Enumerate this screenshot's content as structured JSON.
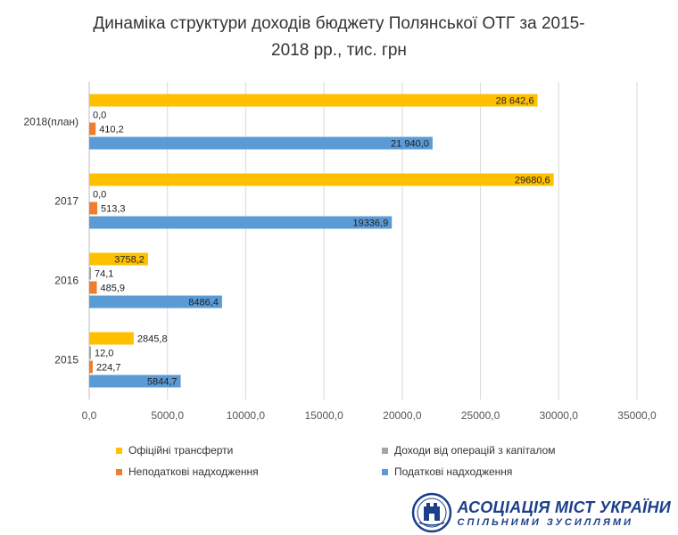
{
  "chart_data": {
    "type": "bar",
    "orientation": "horizontal",
    "title": "Динаміка структури доходів бюджету Полянської ОТГ за 2015-2018 рр., тис. грн",
    "title_lines": [
      "Динаміка структури доходів бюджету Полянської ОТГ за 2015-",
      "2018 рр., тис. грн"
    ],
    "categories": [
      "2018(план)",
      "2017",
      "2016",
      "2015"
    ],
    "xlim": [
      0,
      35000
    ],
    "xticks": [
      0,
      5000,
      10000,
      15000,
      20000,
      25000,
      30000,
      35000
    ],
    "xtick_labels": [
      "0,0",
      "5000,0",
      "10000,0",
      "15000,0",
      "20000,0",
      "25000,0",
      "30000,0",
      "35000,0"
    ],
    "grid": true,
    "legend_position": "bottom",
    "series": [
      {
        "name": "Офіційні трансферти",
        "color": "#FFC000",
        "values": [
          28642.6,
          29680.6,
          3758.2,
          2845.8
        ],
        "labels": [
          "28 642,6",
          "29680,6",
          "3758,2",
          "2845,8"
        ]
      },
      {
        "name": "Доходи від операцій з капіталом",
        "color": "#A5A5A5",
        "values": [
          0.0,
          0.0,
          74.1,
          12.0
        ],
        "labels": [
          "0,0",
          "0,0",
          "74,1",
          "12,0"
        ]
      },
      {
        "name": "Неподаткові надходження",
        "color": "#ED7D31",
        "values": [
          410.2,
          513.3,
          485.9,
          224.7
        ],
        "labels": [
          "410,2",
          "513,3",
          "485,9",
          "224,7"
        ]
      },
      {
        "name": "Податкові надходження",
        "color": "#5B9BD5",
        "values": [
          21940.0,
          19336.9,
          8486.4,
          5844.7
        ],
        "labels": [
          "21 940,0",
          "19336,9",
          "8486,4",
          "5844,7"
        ]
      }
    ]
  },
  "logo": {
    "main_text": "АСОЦІАЦІЯ МІСТ УКРАЇНИ",
    "sub_text": "СПІЛЬНИМИ ЗУСИЛЛЯМИ",
    "color": "#1B3F8B"
  }
}
